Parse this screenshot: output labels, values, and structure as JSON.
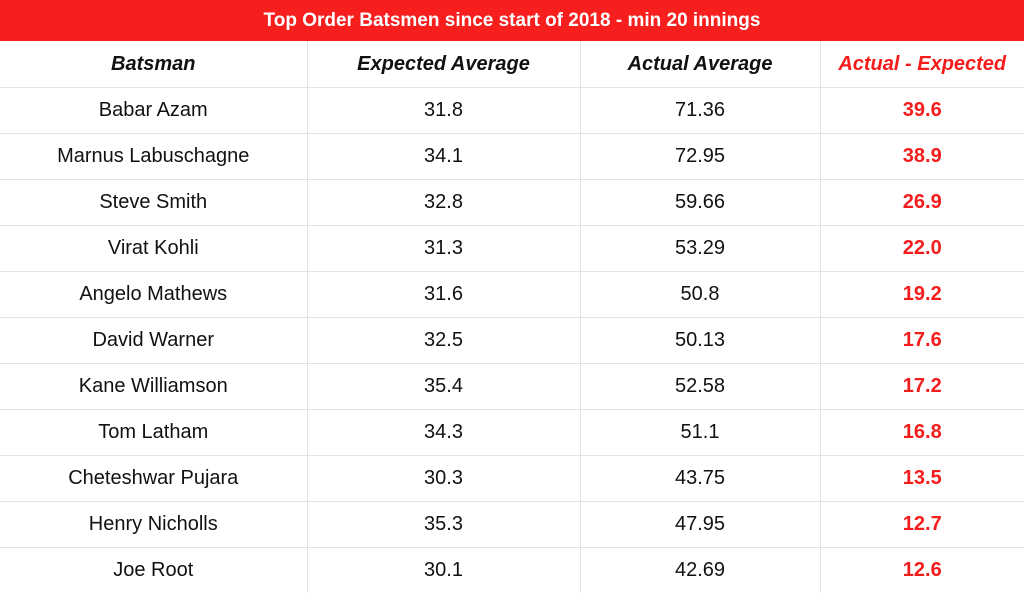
{
  "header": {
    "title": "Top Order Batsmen since start of 2018 - min 20 innings"
  },
  "table": {
    "columns": [
      "Batsman",
      "Expected Average",
      "Actual Average",
      "Actual - Expected"
    ],
    "rows": [
      [
        "Babar Azam",
        "31.8",
        "71.36",
        "39.6"
      ],
      [
        "Marnus Labuschagne",
        "34.1",
        "72.95",
        "38.9"
      ],
      [
        "Steve Smith",
        "32.8",
        "59.66",
        "26.9"
      ],
      [
        "Virat Kohli",
        "31.3",
        "53.29",
        "22.0"
      ],
      [
        "Angelo Mathews",
        "31.6",
        "50.8",
        "19.2"
      ],
      [
        "David Warner",
        "32.5",
        "50.13",
        "17.6"
      ],
      [
        "Kane Williamson",
        "35.4",
        "52.58",
        "17.2"
      ],
      [
        "Tom Latham",
        "34.3",
        "51.1",
        "16.8"
      ],
      [
        "Cheteshwar Pujara",
        "30.3",
        "43.75",
        "13.5"
      ],
      [
        "Henry Nicholls",
        "35.3",
        "47.95",
        "12.7"
      ],
      [
        "Joe Root",
        "30.1",
        "42.69",
        "12.6"
      ]
    ]
  }
}
